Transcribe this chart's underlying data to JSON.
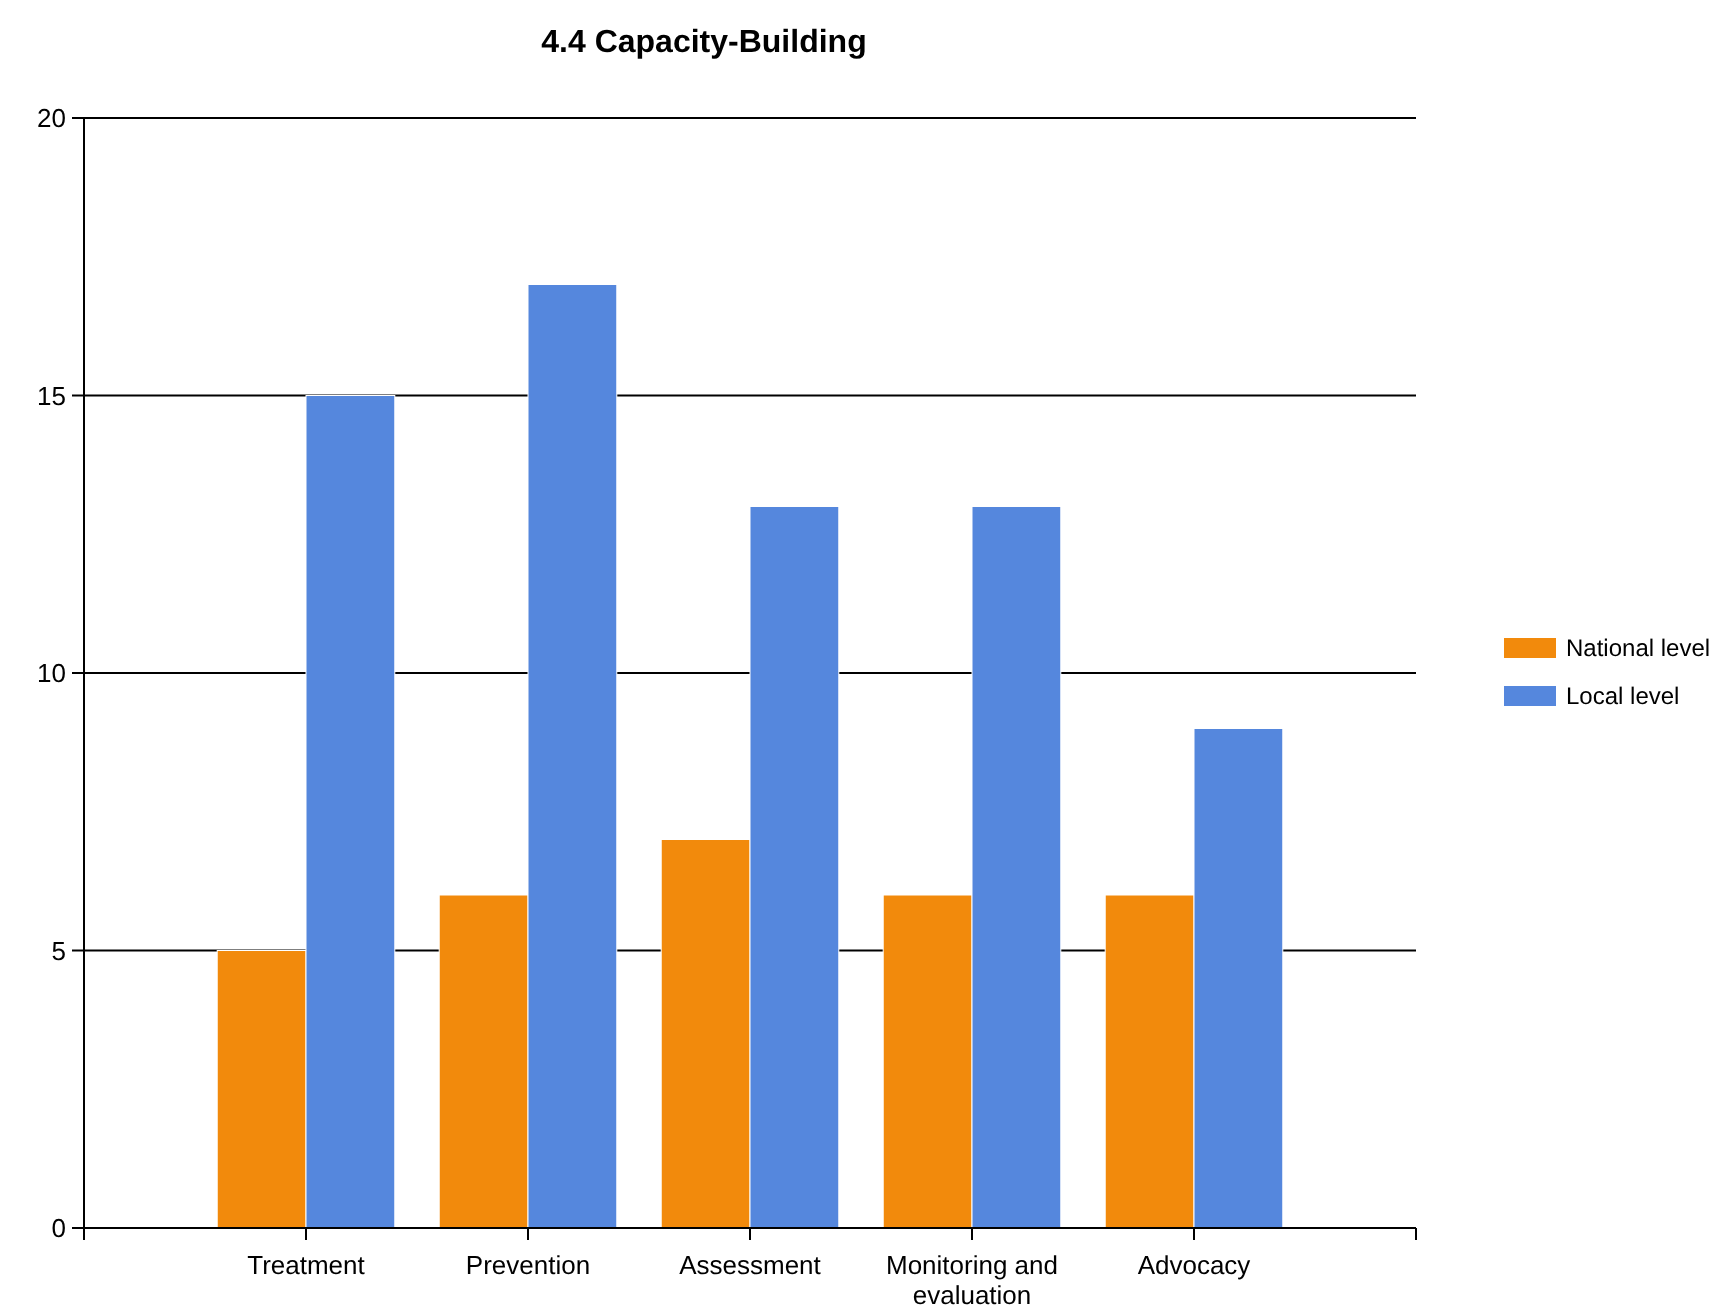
{
  "chart_data": {
    "type": "bar",
    "title": "4.4 Capacity-Building",
    "categories": [
      "Treatment",
      "Prevention",
      "Assessment",
      "Monitoring and evaluation",
      "Advocacy"
    ],
    "series": [
      {
        "name": "National level",
        "color": "#f28a0c",
        "values": [
          5,
          6,
          7,
          6,
          6
        ]
      },
      {
        "name": "Local level",
        "color": "#5587dd",
        "values": [
          15,
          17,
          13,
          13,
          9
        ]
      }
    ],
    "ylim": [
      0,
      20
    ],
    "yticks": [
      0,
      5,
      10,
      15,
      20
    ],
    "grid": "y",
    "legend": "right"
  }
}
